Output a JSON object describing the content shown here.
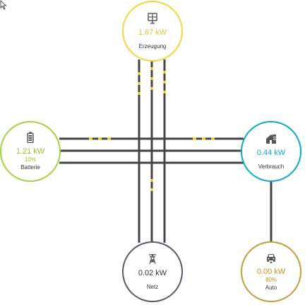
{
  "nodes": {
    "solar": {
      "value": "1.67 kW",
      "label": "Erzeugung",
      "icon": "solar-panel-icon",
      "color": "#f5d33f"
    },
    "battery": {
      "value": "1.21 kW",
      "percent": "10%",
      "label": "Batterie",
      "icon": "battery-icon",
      "color": "#a5d13f"
    },
    "home": {
      "value": "0.44 kW",
      "label": "Verbrauch",
      "icon": "house-icon",
      "color": "#0fa9c8"
    },
    "grid": {
      "value": "0.02 kW",
      "label": "Netz",
      "icon": "power-tower-icon",
      "color": "#59596b"
    },
    "car": {
      "value": "0.00 kW",
      "percent": "80%",
      "label": "Auto",
      "icon": "car-icon",
      "color": "#c89a3a"
    }
  },
  "colors": {
    "line": "#444444",
    "flow_dot": "#f5c518"
  }
}
